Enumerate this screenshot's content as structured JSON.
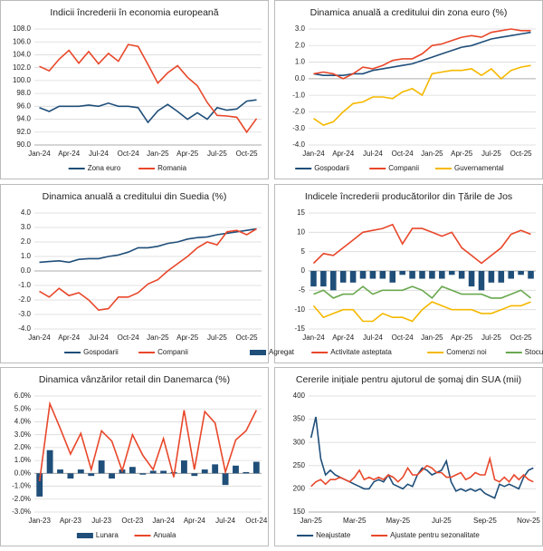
{
  "chart_data": [
    {
      "type": "line",
      "title": "Indicii încrederii în economia europeană",
      "categories": [
        "Jan-24",
        null,
        null,
        "Apr-24",
        null,
        null,
        "Jul-24",
        null,
        null,
        "Oct-24",
        null,
        null,
        "Jan-25",
        null,
        null,
        "Apr-25",
        null,
        null,
        "Jul-25",
        null,
        null,
        "Oct-25",
        null
      ],
      "series": [
        {
          "name": "Zona euro",
          "color": "#1f4e79",
          "values": [
            95.8,
            95.2,
            96.0,
            96.0,
            96.0,
            96.2,
            96.0,
            96.5,
            96.0,
            96.0,
            95.8,
            93.5,
            95.3,
            96.3,
            95.2,
            94.0,
            95.0,
            94.0,
            95.8,
            95.4,
            95.6,
            96.8,
            97.0
          ]
        },
        {
          "name": "Romania",
          "color": "#e8472a",
          "values": [
            102.2,
            101.5,
            103.3,
            104.7,
            102.7,
            104.5,
            102.6,
            104.2,
            103.0,
            105.6,
            105.3,
            102.5,
            99.6,
            101.2,
            102.3,
            100.5,
            99.2,
            96.6,
            94.6,
            94.5,
            94.3,
            92.0,
            94.1
          ]
        }
      ],
      "ylim": [
        90,
        108
      ],
      "yticks": [
        {
          "value": 90,
          "label": "90.0"
        },
        {
          "value": 92,
          "label": "92.0"
        },
        {
          "value": 94,
          "label": "94.0"
        },
        {
          "value": 96,
          "label": "96.0"
        },
        {
          "value": 98,
          "label": "98.0"
        },
        {
          "value": 100,
          "label": "100.0"
        },
        {
          "value": 102,
          "label": "102.0"
        },
        {
          "value": 104,
          "label": "104.0"
        },
        {
          "value": 106,
          "label": "106.0"
        },
        {
          "value": 108,
          "label": "108.0"
        }
      ],
      "grid": true,
      "legend": "bottom"
    },
    {
      "type": "line",
      "title": "Dinamica anuală a creditului din zona euro (%)",
      "categories": [
        "Jan-24",
        null,
        null,
        "Apr-24",
        null,
        null,
        "Jul-24",
        null,
        null,
        "Oct-24",
        null,
        null,
        "Jan-25",
        null,
        null,
        "Apr-25",
        null,
        null,
        "Jul-25",
        null,
        null,
        "Oct-25",
        null
      ],
      "series": [
        {
          "name": "Gospodarii",
          "color": "#1f4e79",
          "values": [
            0.3,
            0.2,
            0.2,
            0.2,
            0.3,
            0.3,
            0.5,
            0.6,
            0.7,
            0.8,
            0.9,
            1.1,
            1.3,
            1.5,
            1.7,
            1.9,
            2.0,
            2.2,
            2.4,
            2.5,
            2.6,
            2.7,
            2.8
          ]
        },
        {
          "name": "Companii",
          "color": "#e8472a",
          "values": [
            0.3,
            0.4,
            0.3,
            0.0,
            0.3,
            0.7,
            0.6,
            0.8,
            1.1,
            1.2,
            1.2,
            1.5,
            2.0,
            2.1,
            2.3,
            2.5,
            2.6,
            2.5,
            2.8,
            2.9,
            3.0,
            2.9,
            2.9
          ]
        },
        {
          "name": "Guvernamental",
          "color": "#f5b800",
          "values": [
            -2.4,
            -2.8,
            -2.6,
            -2.0,
            -1.5,
            -1.4,
            -1.1,
            -1.1,
            -1.2,
            -0.8,
            -0.6,
            -1.0,
            0.3,
            0.4,
            0.5,
            0.5,
            0.6,
            0.2,
            0.6,
            0.0,
            0.5,
            0.7,
            0.8
          ]
        }
      ],
      "ylim": [
        -4,
        3
      ],
      "yticks": [
        {
          "value": -4,
          "label": "-4.0"
        },
        {
          "value": -3,
          "label": "-3.0"
        },
        {
          "value": -2,
          "label": "-2.0"
        },
        {
          "value": -1,
          "label": "-1.0"
        },
        {
          "value": 0,
          "label": "0.0"
        },
        {
          "value": 1,
          "label": "1.0"
        },
        {
          "value": 2,
          "label": "2.0"
        },
        {
          "value": 3,
          "label": "3.0"
        }
      ],
      "grid": true,
      "legend": "bottom"
    },
    {
      "type": "line",
      "title": "Dinamica anuală a creditului din Suedia (%)",
      "categories": [
        "Jan-24",
        null,
        null,
        "Apr-24",
        null,
        null,
        "Jul-24",
        null,
        null,
        "Oct-24",
        null,
        null,
        "Jan-25",
        null,
        null,
        "Apr-25",
        null,
        null,
        "Jul-25",
        null,
        null,
        "Oct-25",
        null
      ],
      "series": [
        {
          "name": "Gospodarii",
          "color": "#1f4e79",
          "values": [
            0.6,
            0.65,
            0.7,
            0.6,
            0.8,
            0.85,
            0.85,
            1.0,
            1.1,
            1.3,
            1.6,
            1.6,
            1.7,
            1.9,
            2.0,
            2.2,
            2.3,
            2.35,
            2.5,
            2.6,
            2.7,
            2.8,
            2.9
          ]
        },
        {
          "name": "Companii",
          "color": "#e8472a",
          "values": [
            -1.4,
            -1.8,
            -1.2,
            -1.7,
            -1.5,
            -2.0,
            -2.7,
            -2.6,
            -1.8,
            -1.8,
            -1.5,
            -0.9,
            -0.6,
            0.0,
            0.5,
            1.0,
            1.6,
            2.0,
            1.8,
            2.7,
            2.8,
            2.5,
            2.9
          ]
        }
      ],
      "ylim": [
        -4,
        4
      ],
      "yticks": [
        {
          "value": -4,
          "label": "-4.0"
        },
        {
          "value": -3,
          "label": "-3.0"
        },
        {
          "value": -2,
          "label": "-2.0"
        },
        {
          "value": -1,
          "label": "-1.0"
        },
        {
          "value": 0,
          "label": "0.0"
        },
        {
          "value": 1,
          "label": "1.0"
        },
        {
          "value": 2,
          "label": "2.0"
        },
        {
          "value": 3,
          "label": "3.0"
        },
        {
          "value": 4,
          "label": "4.0"
        }
      ],
      "grid": true,
      "legend": "bottom"
    },
    {
      "type": "combo",
      "title": "Indicele încrederii producătorilor din Țările de Jos",
      "categories": [
        "Jan-24",
        null,
        null,
        "Apr-24",
        null,
        null,
        "Jul-24",
        null,
        null,
        "Oct-24",
        null,
        null,
        "Jan-25",
        null,
        null,
        "Apr-25",
        null,
        null,
        "Jul-25",
        null,
        null,
        "Oct-25",
        null
      ],
      "series": [
        {
          "name": "Agregat",
          "type": "bar",
          "color": "#1f4e79",
          "values": [
            -4,
            -4,
            -5,
            -3,
            -3,
            -2,
            -2,
            -2,
            -3,
            -1,
            -2,
            -2,
            -2,
            -2,
            -1,
            -2,
            -4,
            -5,
            -3,
            -3,
            -2,
            -1,
            -2
          ]
        },
        {
          "name": "Activitate asteptata",
          "type": "line",
          "color": "#e8472a",
          "values": [
            2,
            4.5,
            4,
            6,
            8,
            10,
            10.5,
            11,
            12,
            7,
            11,
            11,
            10,
            9,
            10,
            6,
            4,
            2,
            4,
            6,
            9.5,
            10.5,
            9.5
          ]
        },
        {
          "name": "Comenzi noi",
          "type": "line",
          "color": "#f5b800",
          "values": [
            -9,
            -12,
            -11,
            -10,
            -10,
            -13,
            -13,
            -11,
            -12,
            -12,
            -13,
            -10,
            -8,
            -9,
            -10,
            -10,
            -10,
            -11,
            -11,
            -10,
            -9,
            -9,
            -8
          ]
        },
        {
          "name": "Stocuri",
          "type": "line",
          "color": "#6aa84f",
          "values": [
            -6,
            -5,
            -7,
            -6,
            -6,
            -4,
            -6,
            -5,
            -5,
            -5,
            -4,
            -5,
            -7,
            -4,
            -5,
            -6,
            -6,
            -6,
            -7,
            -7,
            -6,
            -5,
            -7
          ]
        }
      ],
      "ylim": [
        -15,
        15
      ],
      "yticks": [
        -15,
        -10,
        -5,
        0,
        5,
        10,
        15
      ],
      "grid": true,
      "legend": "bottom"
    },
    {
      "type": "combo",
      "title": "Dinamica vânzărilor retail din Danemarca (%)",
      "categories": [
        "Jan-23",
        null,
        null,
        "Apr-23",
        null,
        null,
        "Jul-23",
        null,
        null,
        "Oct-23",
        null,
        null,
        "Jan-24",
        null,
        null,
        "Apr-24",
        null,
        null,
        "Jul-24",
        null,
        null,
        "Oct-24"
      ],
      "series": [
        {
          "name": "Lunara",
          "type": "bar",
          "color": "#1f4e79",
          "values": [
            -1.8,
            1.8,
            0.3,
            -0.4,
            0.3,
            -0.2,
            1.0,
            -0.4,
            0.3,
            0.5,
            -0.1,
            0.2,
            0.2,
            0.1,
            1.0,
            -0.2,
            0.3,
            0.7,
            -0.9,
            0.6,
            0.1,
            0.9
          ]
        },
        {
          "name": "Anuala",
          "type": "line",
          "color": "#e8472a",
          "values": [
            -0.6,
            5.4,
            3.5,
            1.5,
            3.1,
            0.3,
            3.3,
            2.5,
            0.2,
            3.0,
            1.4,
            0.3,
            2.7,
            -0.3,
            4.9,
            0.3,
            4.8,
            3.9,
            0.1,
            2.6,
            3.3,
            4.9
          ]
        }
      ],
      "ylim": [
        -3,
        6
      ],
      "yticks": [
        {
          "value": -3,
          "label": "-3.0%"
        },
        {
          "value": -2,
          "label": "-2.0%"
        },
        {
          "value": -1,
          "label": "-1.0%"
        },
        {
          "value": 0,
          "label": "0.0%"
        },
        {
          "value": 1,
          "label": "1.0%"
        },
        {
          "value": 2,
          "label": "2.0%"
        },
        {
          "value": 3,
          "label": "3.0%"
        },
        {
          "value": 4,
          "label": "4.0%"
        },
        {
          "value": 5,
          "label": "5.0%"
        },
        {
          "value": 6,
          "label": "6.0%"
        }
      ],
      "grid": true,
      "legend": "bottom"
    },
    {
      "type": "line",
      "title": "Cererile inițiale pentru ajutorul de șomaj din SUA (mii)",
      "categories": [
        "Jan-25",
        null,
        null,
        null,
        null,
        null,
        null,
        null,
        null,
        "Mar-25",
        null,
        null,
        null,
        null,
        null,
        null,
        null,
        null,
        "May-25",
        null,
        null,
        null,
        null,
        null,
        null,
        null,
        null,
        "Jul-25",
        null,
        null,
        null,
        null,
        null,
        null,
        null,
        null,
        "Sep-25",
        null,
        null,
        null,
        null,
        null,
        null,
        null,
        null,
        "Nov-25",
        null
      ],
      "series": [
        {
          "name": "Neajustate",
          "color": "#1f4e79",
          "values": [
            310,
            355,
            265,
            230,
            240,
            230,
            225,
            220,
            215,
            210,
            205,
            200,
            200,
            215,
            220,
            215,
            230,
            210,
            205,
            200,
            210,
            205,
            230,
            245,
            240,
            230,
            235,
            240,
            260,
            215,
            195,
            200,
            195,
            200,
            195,
            200,
            190,
            185,
            180,
            210,
            205,
            210,
            205,
            200,
            225,
            240,
            245
          ]
        },
        {
          "name": "Ajustate pentru sezonalitate",
          "color": "#e8472a",
          "values": [
            205,
            215,
            220,
            210,
            220,
            220,
            225,
            220,
            215,
            225,
            240,
            220,
            225,
            220,
            225,
            220,
            230,
            225,
            215,
            225,
            245,
            230,
            230,
            240,
            250,
            245,
            235,
            235,
            225,
            225,
            230,
            235,
            220,
            225,
            235,
            230,
            230,
            265,
            220,
            215,
            225,
            215,
            230,
            220,
            230,
            220,
            215
          ]
        }
      ],
      "ylim": [
        150,
        400
      ],
      "yticks": [
        150,
        200,
        250,
        300,
        350,
        400
      ],
      "grid": true,
      "legend": "bottom"
    }
  ]
}
